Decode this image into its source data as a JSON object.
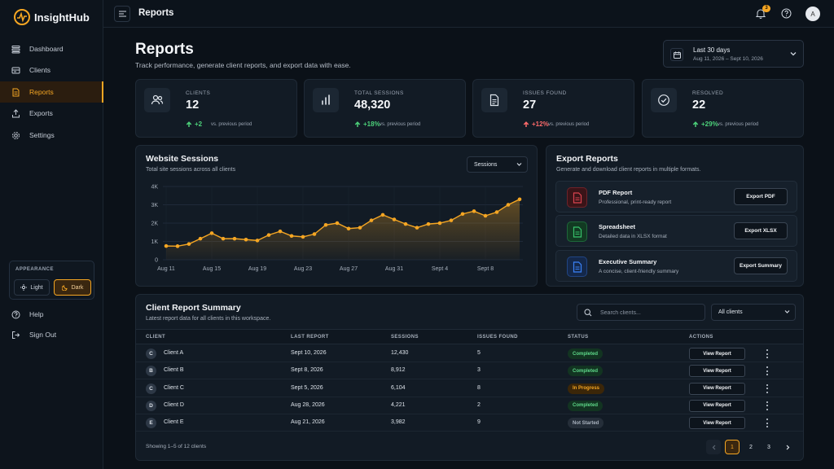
{
  "brand": {
    "name": "InsightHub"
  },
  "sidebar": {
    "items": [
      {
        "label": "Dashboard",
        "icon": "dashboard-icon"
      },
      {
        "label": "Clients",
        "icon": "clients-icon"
      },
      {
        "label": "Reports",
        "icon": "reports-icon",
        "active": true
      },
      {
        "label": "Exports",
        "icon": "exports-icon"
      },
      {
        "label": "Settings",
        "icon": "settings-icon"
      }
    ],
    "appearance": {
      "title": "APPEARANCE",
      "light": "Light",
      "dark": "Dark",
      "selected": "Dark"
    },
    "help": "Help",
    "signout": "Sign Out"
  },
  "topbar": {
    "title": "Reports",
    "notifications": "3",
    "avatar": "A"
  },
  "header": {
    "title": "Reports",
    "subtitle": "Track performance, generate client reports, and export data with ease.",
    "date_picker": {
      "label": "Last 30 days",
      "range": "Aug 11, 2026 – Sept 10, 2026"
    }
  },
  "stats": [
    {
      "label": "CLIENTS",
      "value": "12",
      "change": "+2",
      "direction": "up",
      "note": "vs. previous period",
      "icon": "users-icon"
    },
    {
      "label": "TOTAL SESSIONS",
      "value": "48,320",
      "change": "+18%",
      "direction": "up",
      "note": "vs. previous period",
      "icon": "bar-chart-icon"
    },
    {
      "label": "ISSUES FOUND",
      "value": "27",
      "change": "+12%",
      "direction": "up-bad",
      "note": "vs. previous period",
      "icon": "document-icon"
    },
    {
      "label": "RESOLVED",
      "value": "22",
      "change": "+29%",
      "direction": "up",
      "note": "vs. previous period",
      "icon": "check-circle-icon"
    }
  ],
  "sessions": {
    "title": "Website Sessions",
    "subtitle": "Total site sessions across all clients",
    "dropdown": "Sessions"
  },
  "chart_data": {
    "type": "area",
    "x": [
      "Aug 11",
      "Aug 12",
      "Aug 13",
      "Aug 14",
      "Aug 15",
      "Aug 16",
      "Aug 17",
      "Aug 18",
      "Aug 19",
      "Aug 20",
      "Aug 21",
      "Aug 22",
      "Aug 23",
      "Aug 24",
      "Aug 25",
      "Aug 26",
      "Aug 27",
      "Aug 28",
      "Aug 29",
      "Aug 30",
      "Aug 31",
      "Sept 1",
      "Sept 2",
      "Sept 3",
      "Sept 4",
      "Sept 5",
      "Sept 6",
      "Sept 7",
      "Sept 8",
      "Sept 9",
      "Sept 10",
      "Sept 11"
    ],
    "values": [
      750,
      740,
      860,
      1150,
      1450,
      1150,
      1150,
      1100,
      1050,
      1350,
      1550,
      1300,
      1250,
      1400,
      1900,
      2000,
      1700,
      1750,
      2150,
      2450,
      2200,
      1950,
      1750,
      1950,
      2000,
      2150,
      2500,
      2650,
      2400,
      2600,
      3000,
      3300
    ],
    "xticks": [
      "Aug 11",
      "Aug 15",
      "Aug 19",
      "Aug 23",
      "Aug 27",
      "Aug 31",
      "Sept 4",
      "Sept 8"
    ],
    "yticks": [
      "0",
      "1K",
      "2K",
      "3K",
      "4K"
    ],
    "ylim": [
      0,
      4000
    ],
    "grid": true,
    "color": "#f5a623"
  },
  "export": {
    "title": "Export Reports",
    "subtitle": "Generate and download client reports in multiple formats.",
    "items": [
      {
        "name": "PDF Report",
        "desc": "Professional, print-ready report",
        "button": "Export PDF",
        "icon": "pdf-file-icon",
        "color": "#d9434f",
        "bg": "#3a1418"
      },
      {
        "name": "Spreadsheet",
        "desc": "Detailed data in XLSX format",
        "button": "Export XLSX",
        "icon": "spreadsheet-icon",
        "color": "#37c26b",
        "bg": "#123a22"
      },
      {
        "name": "Executive Summary",
        "desc": "A concise, client-friendly summary",
        "button": "Export Summary",
        "icon": "summary-doc-icon",
        "color": "#3b82f6",
        "bg": "#14284a"
      }
    ]
  },
  "summary": {
    "title": "Client Report Summary",
    "subtitle": "Latest report data for all clients in this workspace.",
    "search_placeholder": "Search clients...",
    "filter": "All clients",
    "columns": [
      "CLIENT",
      "LAST REPORT",
      "SESSIONS",
      "ISSUES FOUND",
      "STATUS",
      "ACTIONS"
    ],
    "rows": [
      {
        "initial": "C",
        "client": "Client A",
        "last": "Sept 10, 2026",
        "sessions": "12,430",
        "issues": "5",
        "status": "Completed",
        "status_type": "completed",
        "action": "View Report"
      },
      {
        "initial": "B",
        "client": "Client B",
        "last": "Sept 8, 2026",
        "sessions": "8,912",
        "issues": "3",
        "status": "Completed",
        "status_type": "completed",
        "action": "View Report"
      },
      {
        "initial": "C",
        "client": "Client C",
        "last": "Sept 5, 2026",
        "sessions": "6,104",
        "issues": "8",
        "status": "In Progress",
        "status_type": "progress",
        "action": "View Report"
      },
      {
        "initial": "D",
        "client": "Client D",
        "last": "Aug 28, 2026",
        "sessions": "4,221",
        "issues": "2",
        "status": "Completed",
        "status_type": "completed",
        "action": "View Report"
      },
      {
        "initial": "E",
        "client": "Client E",
        "last": "Aug 21, 2026",
        "sessions": "3,982",
        "issues": "9",
        "status": "Not Started",
        "status_type": "notstarted",
        "action": "View Report"
      }
    ],
    "footer": "Showing 1–5 of 12 clients",
    "pages": [
      "1",
      "2",
      "3"
    ],
    "current_page": "1"
  }
}
